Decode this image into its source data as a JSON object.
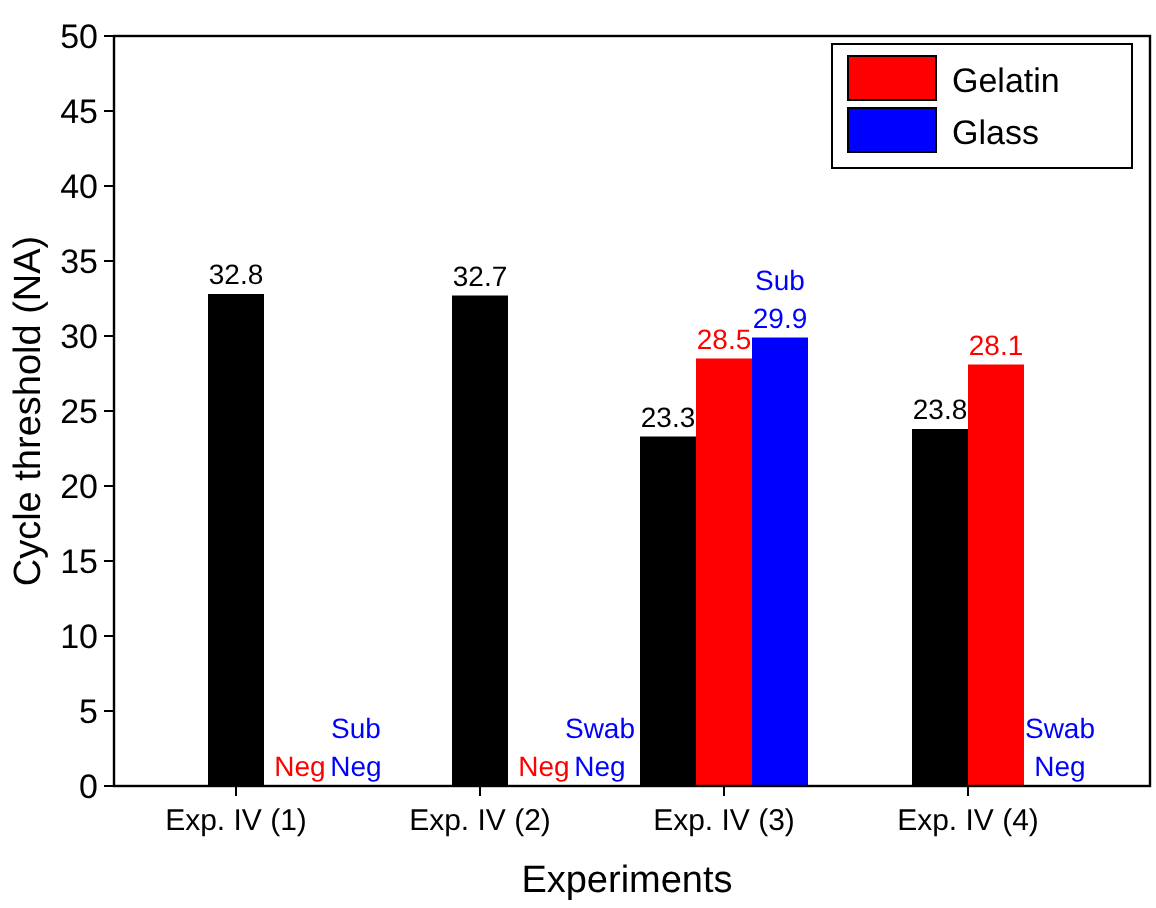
{
  "chart_data": {
    "type": "bar",
    "xlabel": "Experiments",
    "ylabel": "Cycle threshold (NA)",
    "categories": [
      "Exp. IV (1)",
      "Exp. IV (2)",
      "Exp. IV (3)",
      "Exp. IV (4)"
    ],
    "series": [
      {
        "color": "#000000",
        "values": [
          32.8,
          32.7,
          23.3,
          23.8
        ],
        "value_labels": [
          "32.8",
          "32.7",
          "23.3",
          "23.8"
        ]
      },
      {
        "name": "Gelatin",
        "color": "#ff0000",
        "values": [
          null,
          null,
          28.5,
          28.1
        ],
        "value_labels": [
          "Neg",
          "Neg",
          "28.5",
          "28.1"
        ]
      },
      {
        "name": "Glass",
        "color": "#0000ff",
        "values": [
          null,
          null,
          29.9,
          null
        ],
        "value_labels": [
          "Sub Neg",
          "Swab Neg",
          "Sub 29.9",
          "Swab Neg"
        ]
      }
    ],
    "ylim": [
      0,
      50
    ],
    "yticks": [
      0,
      5,
      10,
      15,
      20,
      25,
      30,
      35,
      40,
      45,
      50
    ],
    "grid": false,
    "legend": "top right"
  }
}
